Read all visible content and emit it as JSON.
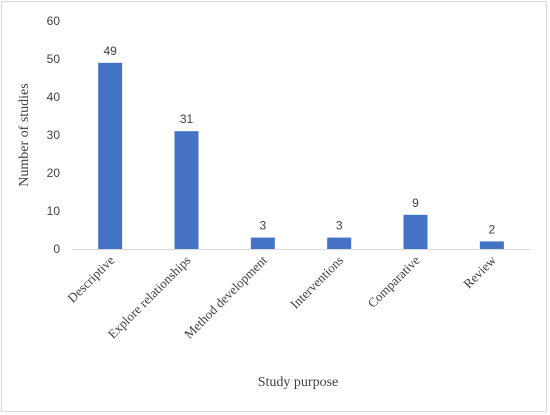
{
  "chart_data": {
    "type": "bar",
    "title": "",
    "xlabel": "Study purpose",
    "ylabel": "Number of studies",
    "categories": [
      "Descriptive",
      "Explore relationships",
      "Method development",
      "Interventions",
      "Comparative",
      "Review"
    ],
    "values": [
      49,
      31,
      3,
      3,
      9,
      2
    ],
    "ylim": [
      0,
      60
    ],
    "yticks": [
      0,
      10,
      20,
      30,
      40,
      50,
      60
    ],
    "grid": false,
    "legend": "none",
    "bar_color": "#4472C4",
    "data_labels": true
  }
}
